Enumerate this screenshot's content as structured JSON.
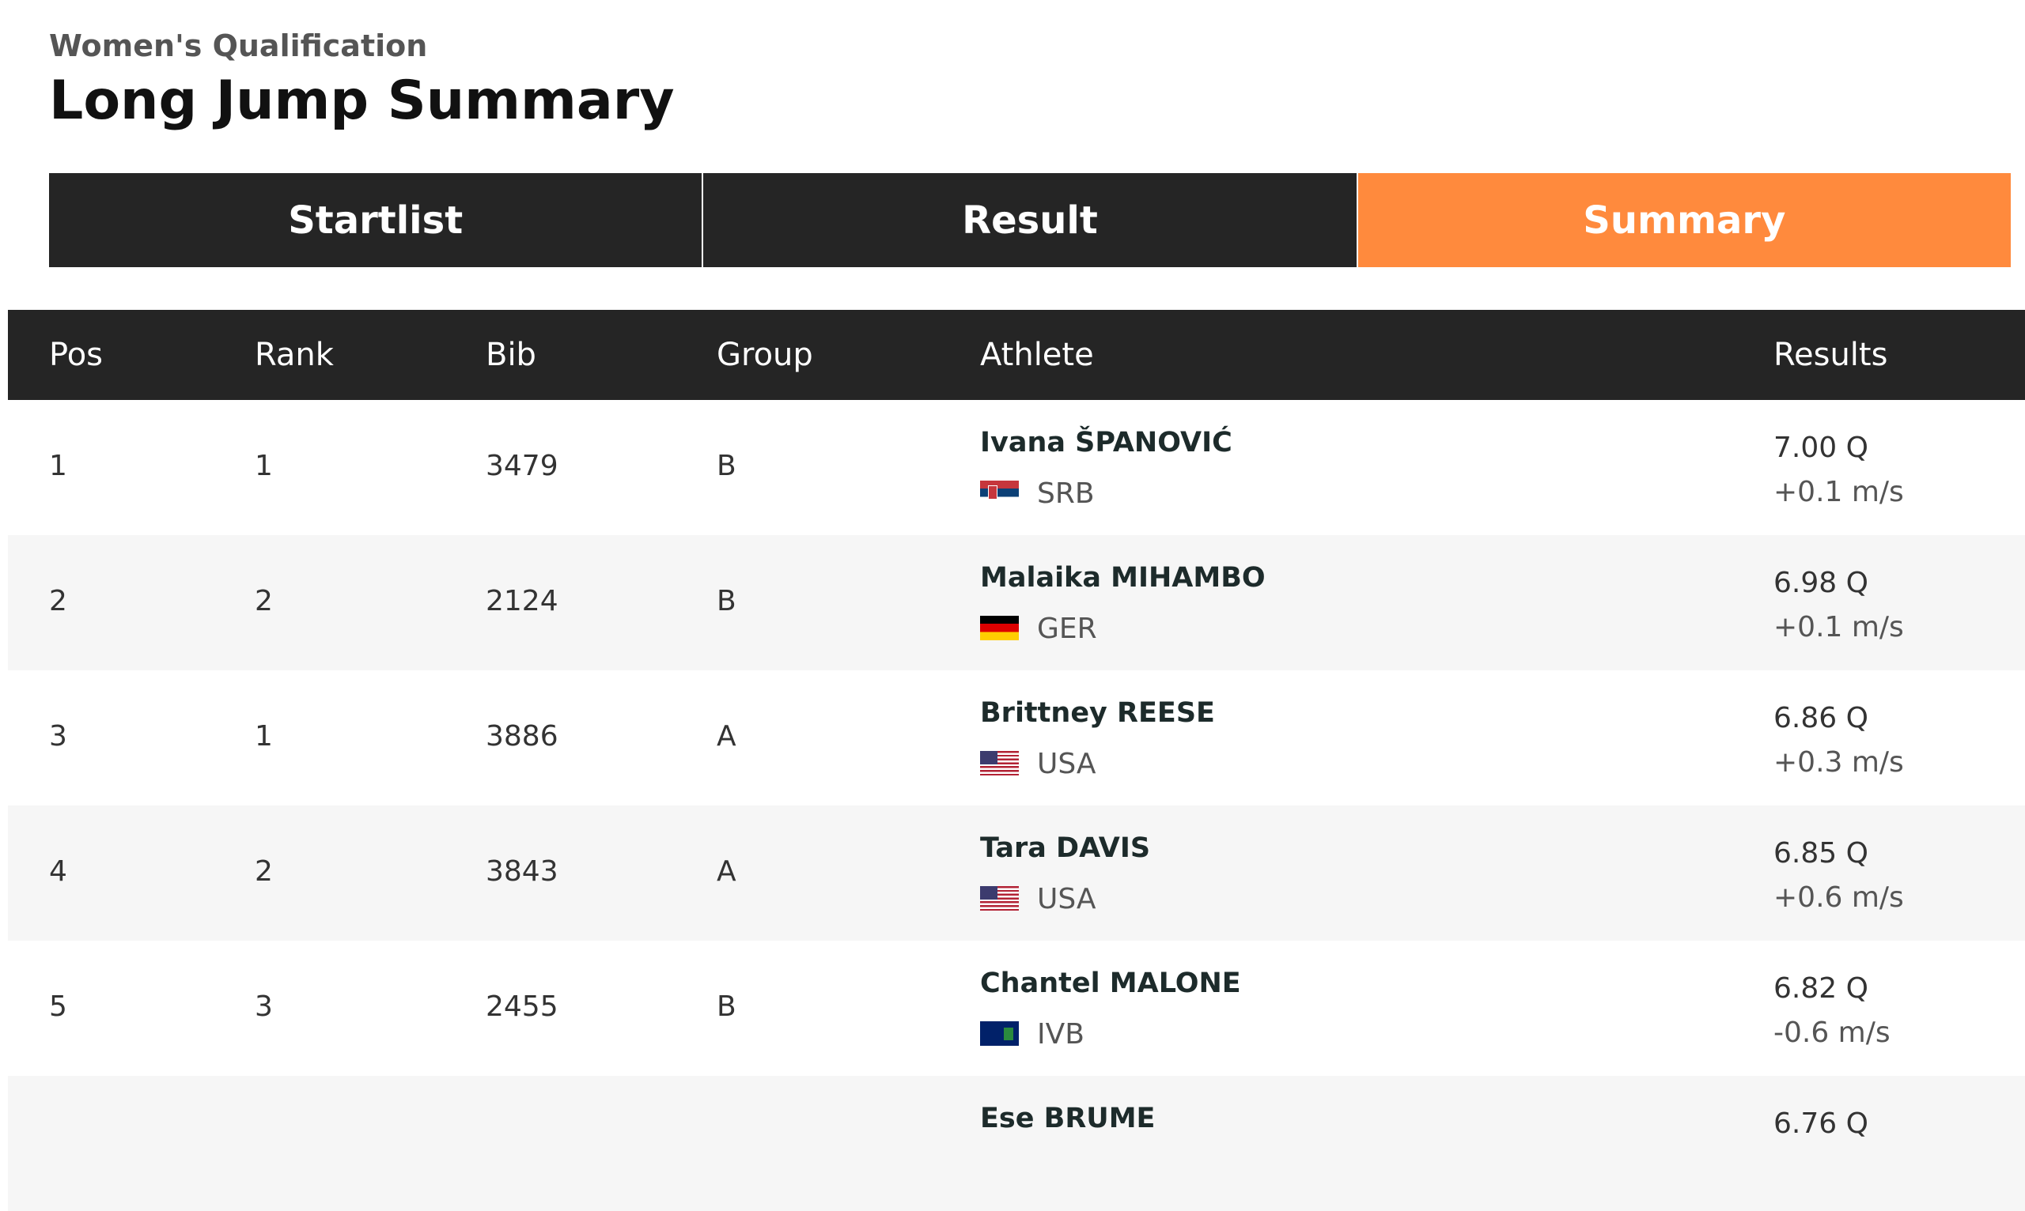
{
  "header": {
    "subtitle": "Women's Qualification",
    "title": "Long Jump Summary"
  },
  "tabs": [
    {
      "label": "Startlist",
      "active": false
    },
    {
      "label": "Result",
      "active": false
    },
    {
      "label": "Summary",
      "active": true
    }
  ],
  "table": {
    "columns": [
      "Pos",
      "Rank",
      "Bib",
      "Group",
      "Athlete",
      "Results"
    ],
    "rows": [
      {
        "pos": "1",
        "rank": "1",
        "bib": "3479",
        "group": "B",
        "athlete": "Ivana ŠPANOVIĆ",
        "country": "SRB",
        "result": "7.00 Q",
        "wind": "+0.1 m/s"
      },
      {
        "pos": "2",
        "rank": "2",
        "bib": "2124",
        "group": "B",
        "athlete": "Malaika MIHAMBO",
        "country": "GER",
        "result": "6.98 Q",
        "wind": "+0.1 m/s"
      },
      {
        "pos": "3",
        "rank": "1",
        "bib": "3886",
        "group": "A",
        "athlete": "Brittney REESE",
        "country": "USA",
        "result": "6.86 Q",
        "wind": "+0.3 m/s"
      },
      {
        "pos": "4",
        "rank": "2",
        "bib": "3843",
        "group": "A",
        "athlete": "Tara DAVIS",
        "country": "USA",
        "result": "6.85 Q",
        "wind": "+0.6 m/s"
      },
      {
        "pos": "5",
        "rank": "3",
        "bib": "2455",
        "group": "B",
        "athlete": "Chantel MALONE",
        "country": "IVB",
        "result": "6.82 Q",
        "wind": "-0.6 m/s"
      },
      {
        "athlete": "Ese BRUME",
        "result": "6.76 Q"
      }
    ]
  }
}
